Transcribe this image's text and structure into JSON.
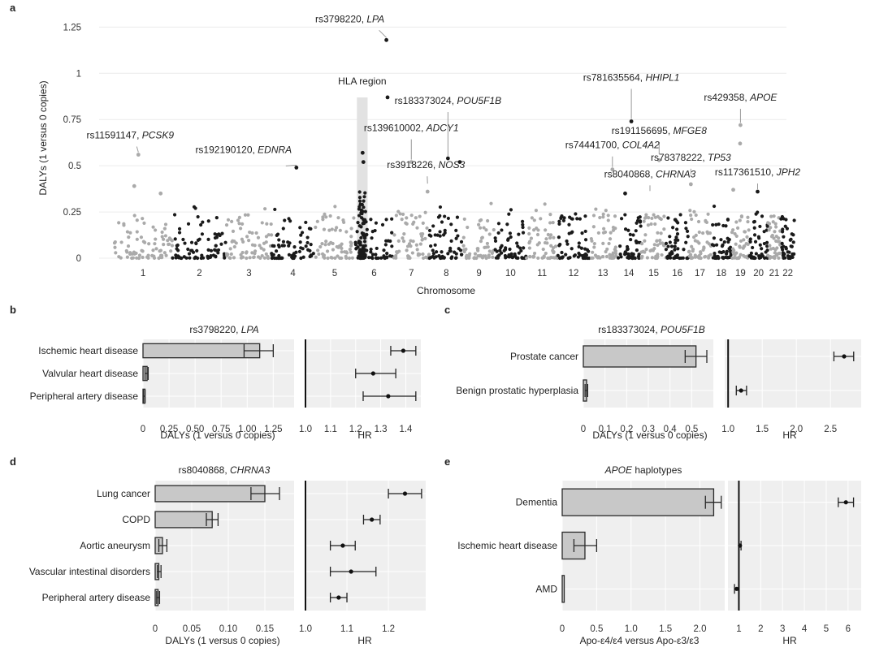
{
  "colors": {
    "dark": "#1a1a1a",
    "light": "#aaaaaa",
    "bar": "#c8c8c8",
    "panel": "#efefef",
    "grid": "#ffffff"
  },
  "chart_data": [
    {
      "id": "a",
      "type": "scatter",
      "panel_label": "a",
      "xlabel": "Chromosome",
      "ylabel": "DALYs (1 versus 0 copies)",
      "ylim": [
        0,
        1.3
      ],
      "yticks": [
        "0",
        "0.25",
        "0.5",
        "0.75",
        "1",
        "1.25"
      ],
      "ytick_values": [
        0,
        0.25,
        0.5,
        0.75,
        1,
        1.25
      ],
      "chromosomes": [
        "1",
        "2",
        "3",
        "4",
        "5",
        "6",
        "7",
        "8",
        "9",
        "10",
        "11",
        "12",
        "13",
        "14",
        "15",
        "16",
        "17",
        "18",
        "19",
        "20",
        "21",
        "22"
      ],
      "chrom_widths": [
        1.3,
        1.2,
        1.0,
        0.95,
        0.9,
        0.85,
        0.8,
        0.75,
        0.7,
        0.7,
        0.7,
        0.7,
        0.6,
        0.55,
        0.55,
        0.5,
        0.5,
        0.45,
        0.4,
        0.4,
        0.3,
        0.3
      ],
      "region_label": "HLA region",
      "region": {
        "chrom": "6",
        "pos": [
          0.05,
          0.33
        ]
      },
      "annotations": [
        {
          "rsid": "rs3798220, ",
          "gene": "LPA",
          "chrom": "6",
          "pos": 0.82,
          "y": 1.18
        },
        {
          "rsid": "rs11591147, ",
          "gene": "PCSK9",
          "chrom": "1",
          "pos": 0.42,
          "y": 0.56
        },
        {
          "rsid": "rs192190120, ",
          "gene": "EDNRA",
          "chrom": "4",
          "pos": 0.58,
          "y": 0.49
        },
        {
          "rsid": "rs139610002, ",
          "gene": "ADCY1",
          "chrom": "7",
          "pos": 0.5,
          "y": 0.52
        },
        {
          "rsid": "rs183373024, ",
          "gene": "POU5F1B",
          "chrom": "8",
          "pos": 0.55,
          "y": 0.54
        },
        {
          "rsid": "rs3918226, ",
          "gene": "NOS3",
          "chrom": "7",
          "pos": 0.95,
          "y": 0.39
        },
        {
          "rsid": "rs781635564, ",
          "gene": "HHIPL1",
          "chrom": "14",
          "pos": 0.6,
          "y": 0.74
        },
        {
          "rsid": "rs191156695, ",
          "gene": "MFGE8",
          "chrom": "15",
          "pos": 0.72,
          "y": 0.55
        },
        {
          "rsid": "rs74441700, ",
          "gene": "COL4A2",
          "chrom": "13",
          "pos": 0.85,
          "y": 0.48
        },
        {
          "rsid": "rs78378222, ",
          "gene": "TP53",
          "chrom": "17",
          "pos": 0.1,
          "y": 0.44
        },
        {
          "rsid": "rs8040868, ",
          "gene": "CHRNA3",
          "chrom": "15",
          "pos": 0.35,
          "y": 0.35
        },
        {
          "rsid": "rs429358, ",
          "gene": "APOE",
          "chrom": "19",
          "pos": 0.5,
          "y": 0.72
        },
        {
          "rsid": "rs117361510, ",
          "gene": "JPH2",
          "chrom": "20",
          "pos": 0.45,
          "y": 0.36
        }
      ],
      "highlights": [
        {
          "chrom": "6",
          "pos": 0.82,
          "y": 1.18
        },
        {
          "chrom": "6",
          "pos": 0.85,
          "y": 0.87
        },
        {
          "chrom": "14",
          "pos": 0.6,
          "y": 0.74
        },
        {
          "chrom": "19",
          "pos": 0.5,
          "y": 0.72
        },
        {
          "chrom": "19",
          "pos": 0.48,
          "y": 0.62
        },
        {
          "chrom": "1",
          "pos": 0.42,
          "y": 0.56
        },
        {
          "chrom": "6",
          "pos": 0.2,
          "y": 0.57
        },
        {
          "chrom": "6",
          "pos": 0.22,
          "y": 0.52
        },
        {
          "chrom": "8",
          "pos": 0.55,
          "y": 0.54
        },
        {
          "chrom": "8",
          "pos": 0.9,
          "y": 0.52
        },
        {
          "chrom": "7",
          "pos": 0.5,
          "y": 0.52
        },
        {
          "chrom": "4",
          "pos": 0.58,
          "y": 0.49
        },
        {
          "chrom": "13",
          "pos": 0.85,
          "y": 0.48
        },
        {
          "chrom": "15",
          "pos": 0.72,
          "y": 0.53
        },
        {
          "chrom": "17",
          "pos": 0.1,
          "y": 0.4
        },
        {
          "chrom": "7",
          "pos": 0.95,
          "y": 0.36
        },
        {
          "chrom": "20",
          "pos": 0.45,
          "y": 0.36
        },
        {
          "chrom": "14",
          "pos": 0.35,
          "y": 0.35
        },
        {
          "chrom": "1",
          "pos": 0.35,
          "y": 0.39
        },
        {
          "chrom": "1",
          "pos": 0.8,
          "y": 0.35
        },
        {
          "chrom": "19",
          "pos": 0.1,
          "y": 0.37
        }
      ]
    },
    {
      "id": "b",
      "type": "bar",
      "panel_label": "b",
      "title_rsid": "rs3798220, ",
      "title_gene": "LPA",
      "categories": [
        "Ischemic heart disease",
        "Valvular heart disease",
        "Peripheral artery disease"
      ],
      "values": [
        1.12,
        0.04,
        0.01
      ],
      "err_lo": [
        0.97,
        0.02,
        0.005
      ],
      "err_hi": [
        1.25,
        0.05,
        0.02
      ],
      "xlim": [
        0,
        1.45
      ],
      "xticks": [
        "0",
        "0.25",
        "0.50",
        "0.75",
        "1.00",
        "1.25"
      ],
      "xtick_values": [
        0,
        0.25,
        0.5,
        0.75,
        1,
        1.25
      ],
      "xlabel": "DALYs (1 versus 0 copies)",
      "hr": [
        1.39,
        1.27,
        1.33
      ],
      "hr_lo": [
        1.34,
        1.2,
        1.23
      ],
      "hr_hi": [
        1.44,
        1.36,
        1.44
      ],
      "hr_xlim": [
        1.0,
        1.46
      ],
      "hr_ticks": [
        "1.0",
        "1.1",
        "1.2",
        "1.3",
        "1.4"
      ],
      "hr_tick_values": [
        1.0,
        1.1,
        1.2,
        1.3,
        1.4
      ],
      "hr_xlabel": "HR"
    },
    {
      "id": "c",
      "type": "bar",
      "panel_label": "c",
      "title_rsid": "rs183373024, ",
      "title_gene": "POU5F1B",
      "categories": [
        "Prostate cancer",
        "Benign prostatic hyperplasia"
      ],
      "values": [
        0.52,
        0.015
      ],
      "err_lo": [
        0.47,
        0.008
      ],
      "err_hi": [
        0.57,
        0.02
      ],
      "xlim": [
        0,
        0.6
      ],
      "xticks": [
        "0",
        "0.1",
        "0.2",
        "0.3",
        "0.4",
        "0.5"
      ],
      "xtick_values": [
        0,
        0.1,
        0.2,
        0.3,
        0.4,
        0.5
      ],
      "xlabel": "DALYs (1 versus 0 copies)",
      "hr": [
        2.7,
        1.19
      ],
      "hr_lo": [
        2.55,
        1.12
      ],
      "hr_hi": [
        2.84,
        1.27
      ],
      "hr_xlim": [
        0.95,
        2.95
      ],
      "hr_ticks": [
        "1.0",
        "1.5",
        "2.0",
        "2.5"
      ],
      "hr_tick_values": [
        1.0,
        1.5,
        2.0,
        2.5
      ],
      "hr_xlabel": "HR"
    },
    {
      "id": "d",
      "type": "bar",
      "panel_label": "d",
      "title_rsid": "rs8040868, ",
      "title_gene": "CHRNA3",
      "categories": [
        "Lung cancer",
        "COPD",
        "Aortic aneurysm",
        "Vascular intestinal disorders",
        "Peripheral artery disease"
      ],
      "values": [
        0.15,
        0.078,
        0.01,
        0.005,
        0.004
      ],
      "err_lo": [
        0.131,
        0.07,
        0.005,
        0.003,
        0.002
      ],
      "err_hi": [
        0.17,
        0.086,
        0.016,
        0.008,
        0.006
      ],
      "xlim": [
        0,
        0.19
      ],
      "xticks": [
        "0",
        "0.05",
        "0.10",
        "0.15"
      ],
      "xtick_values": [
        0,
        0.05,
        0.1,
        0.15
      ],
      "xlabel": "DALYs (1 versus 0 copies)",
      "hr": [
        1.24,
        1.16,
        1.09,
        1.11,
        1.08
      ],
      "hr_lo": [
        1.2,
        1.14,
        1.06,
        1.06,
        1.06
      ],
      "hr_hi": [
        1.28,
        1.18,
        1.12,
        1.17,
        1.1
      ],
      "hr_xlim": [
        1.0,
        1.29
      ],
      "hr_ticks": [
        "1.0",
        "1.1",
        "1.2"
      ],
      "hr_tick_values": [
        1.0,
        1.1,
        1.2
      ],
      "hr_xlabel": "HR"
    },
    {
      "id": "e",
      "type": "bar",
      "panel_label": "e",
      "title_rsid": "",
      "title_gene": "APOE",
      "title_suffix": " haplotypes",
      "categories": [
        "Dementia",
        "Ischemic heart disease",
        "AMD"
      ],
      "values": [
        2.2,
        0.33,
        0.0
      ],
      "err_lo": [
        2.08,
        0.17,
        0.0
      ],
      "err_hi": [
        2.31,
        0.5,
        0.0
      ],
      "xlim": [
        0,
        2.36
      ],
      "xticks": [
        "0",
        "0.5",
        "1.0",
        "1.5",
        "2.0"
      ],
      "xtick_values": [
        0,
        0.5,
        1.0,
        1.5,
        2.0
      ],
      "xlabel": "Apo-ε4/ε4 versus Apo-ε3/ε3",
      "hr": [
        5.9,
        1.05,
        0.9
      ],
      "hr_lo": [
        5.55,
        1.0,
        0.8
      ],
      "hr_hi": [
        6.25,
        1.1,
        1.0
      ],
      "hr_xlim": [
        0.5,
        6.6
      ],
      "hr_ticks": [
        "1",
        "2",
        "3",
        "4",
        "5",
        "6"
      ],
      "hr_tick_values": [
        1,
        2,
        3,
        4,
        5,
        6
      ],
      "hr_xlabel": "HR"
    }
  ]
}
